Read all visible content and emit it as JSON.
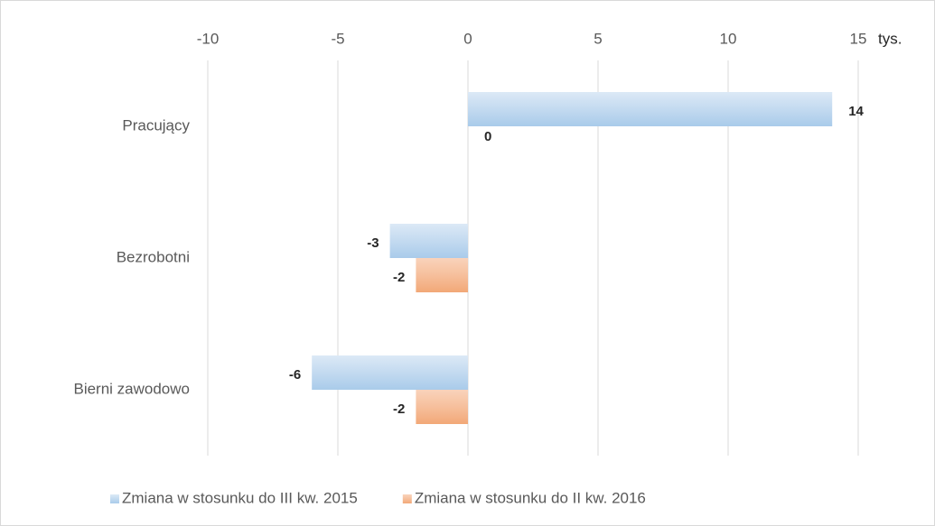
{
  "chart_data": {
    "type": "bar",
    "orientation": "horizontal",
    "categories": [
      "Pracujący",
      "Bezrobotni",
      "Bierni zawodowo"
    ],
    "series": [
      {
        "name": "Zmiana w stosunku do III kw. 2015",
        "color": "#9dc3e6",
        "values": [
          14,
          -3,
          -6
        ]
      },
      {
        "name": "Zmiana w stosunku do II kw. 2016",
        "color": "#f4b183",
        "values": [
          0,
          -2,
          -2
        ]
      }
    ],
    "xlim": [
      -10,
      15
    ],
    "xticks": [
      -10,
      -5,
      0,
      5,
      10,
      15
    ],
    "x_unit": "tys.",
    "grid": true,
    "legend": "bottom"
  }
}
